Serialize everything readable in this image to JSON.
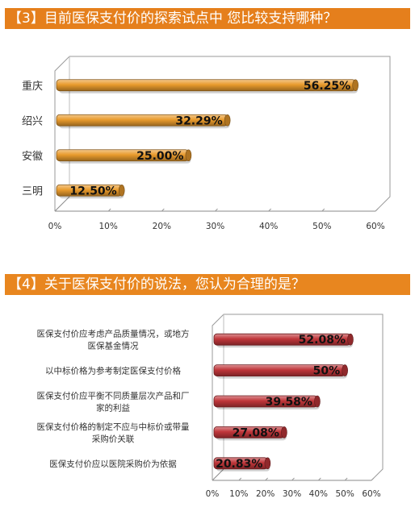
{
  "chart_data": [
    {
      "type": "bar",
      "orientation": "horizontal",
      "title": "【3】目前医保支付价的探索试点中 您比较支持哪种？",
      "categories": [
        "重庆",
        "绍兴",
        "安徽",
        "三明"
      ],
      "values": [
        56.25,
        32.29,
        25.0,
        12.5
      ],
      "value_labels": [
        "56.25%",
        "32.29%",
        "25.00%",
        "12.50%"
      ],
      "xlim": [
        0,
        60
      ],
      "x_ticks": [
        "0%",
        "10%",
        "20%",
        "30%",
        "40%",
        "50%",
        "60%"
      ],
      "grid": false,
      "color": "#e99b2d"
    },
    {
      "type": "bar",
      "orientation": "horizontal",
      "title": "【4】关于医保支付价的说法，您认为合理的是？",
      "categories": [
        [
          "医保支付价应考虑产品质量情况，或地方",
          "医保基金情况"
        ],
        [
          "以中标价格为参考制定医保支付价格"
        ],
        [
          "医保支付价应平衡不同质量层次产品和厂",
          "家的利益"
        ],
        [
          "医保支付价格的制定不应与中标价或带量",
          "采购价关联"
        ],
        [
          "医保支付价应以医院采购价为依据"
        ]
      ],
      "values": [
        52.08,
        50,
        39.58,
        27.08,
        20.83
      ],
      "value_labels": [
        "52.08%",
        "50%",
        "39.58%",
        "27.08%",
        "20.83%"
      ],
      "xlim": [
        0,
        60
      ],
      "x_ticks": [
        "0%",
        "10%",
        "20%",
        "30%",
        "40%",
        "50%",
        "60%"
      ],
      "grid": false,
      "color": "#c0363a"
    }
  ]
}
